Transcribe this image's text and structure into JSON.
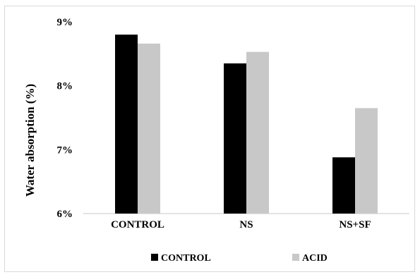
{
  "chart_data": {
    "type": "bar",
    "categories": [
      "CONTROL",
      "NS",
      "NS+SF"
    ],
    "series": [
      {
        "name": "CONTROL",
        "values": [
          8.8,
          8.35,
          6.88
        ],
        "color": "#000000"
      },
      {
        "name": "ACID",
        "values": [
          8.66,
          8.53,
          7.65
        ],
        "color": "#c8c8c8"
      }
    ],
    "ylabel": "Water absorption (%)",
    "xlabel": "",
    "ylim": [
      6,
      9
    ],
    "yticks": [
      6,
      7,
      8,
      9
    ],
    "ytick_labels": [
      "6%",
      "7%",
      "8%",
      "9%"
    ],
    "grid": false,
    "legend_position": "bottom"
  }
}
